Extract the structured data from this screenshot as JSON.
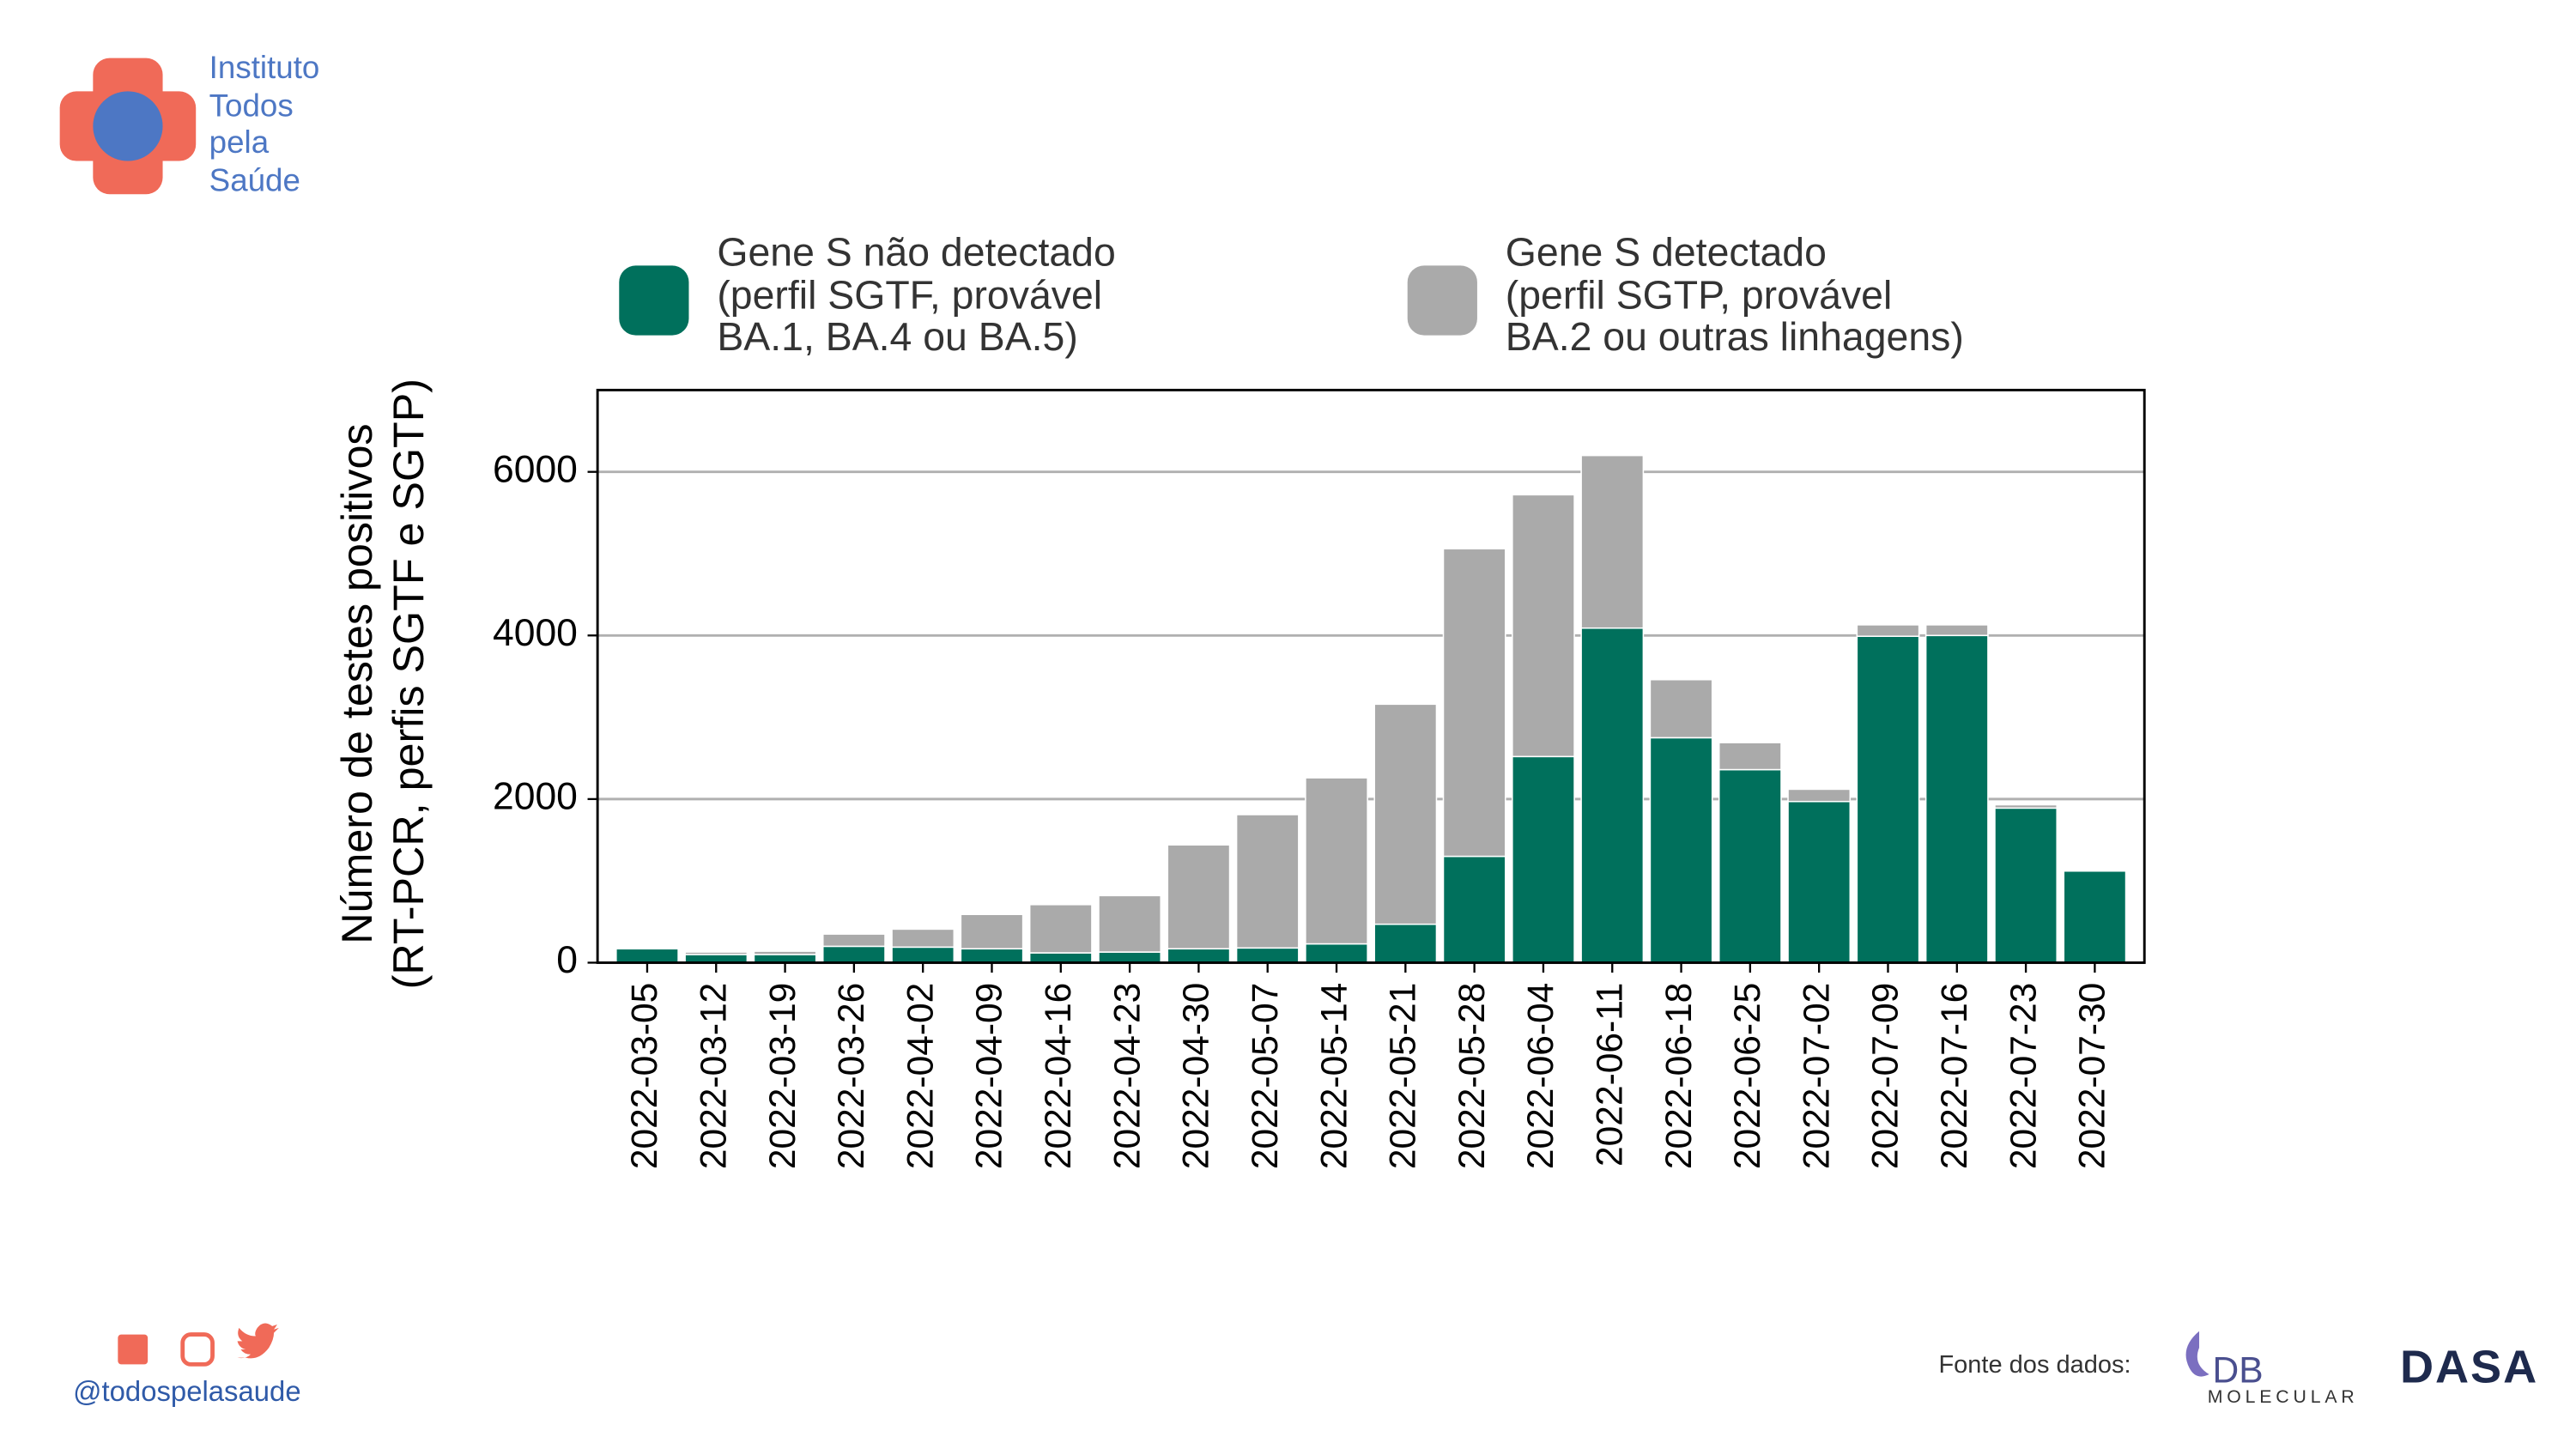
{
  "chart_data": {
    "type": "stacked_bar",
    "ylabel": "Número de testes positivos\n(RT-PCR, perfis SGTF e SGTP)",
    "categories": [
      "2022-03-05",
      "2022-03-12",
      "2022-03-19",
      "2022-03-26",
      "2022-04-02",
      "2022-04-09",
      "2022-04-16",
      "2022-04-23",
      "2022-04-30",
      "2022-05-07",
      "2022-05-14",
      "2022-05-21",
      "2022-05-28",
      "2022-06-04",
      "2022-06-11",
      "2022-06-18",
      "2022-06-25",
      "2022-07-02",
      "2022-07-09",
      "2022-07-16",
      "2022-07-23",
      "2022-07-30"
    ],
    "series": [
      {
        "name": "Gene S não detectado\n(perfil SGTF, provável\nBA.1, BA.4 ou BA.5)",
        "color": "#00705c",
        "values": [
          170,
          100,
          100,
          200,
          190,
          170,
          120,
          130,
          170,
          180,
          230,
          470,
          1300,
          2520,
          4090,
          2750,
          2360,
          1970,
          3990,
          4000,
          1890,
          1120
        ]
      },
      {
        "name": "Gene S detectado\n(perfil SGTP, provável\nBA.2 ou outras linhagens)",
        "color": "#aaaaaa",
        "values": [
          10,
          30,
          40,
          150,
          220,
          420,
          590,
          690,
          1270,
          1630,
          2030,
          2690,
          3760,
          3200,
          2110,
          710,
          330,
          150,
          140,
          130,
          40,
          0
        ]
      }
    ],
    "ylim": [
      0,
      7000
    ],
    "yticks": [
      0,
      2000,
      4000,
      6000
    ],
    "grid": true,
    "legend": "top"
  },
  "logo_text": "Instituto\nTodos\npela\nSaúde",
  "social_handle": "@todospelasaude",
  "source_label": "Fonte dos dados:",
  "source_logos": [
    "DB",
    "MOLECULAR",
    "DASA"
  ]
}
